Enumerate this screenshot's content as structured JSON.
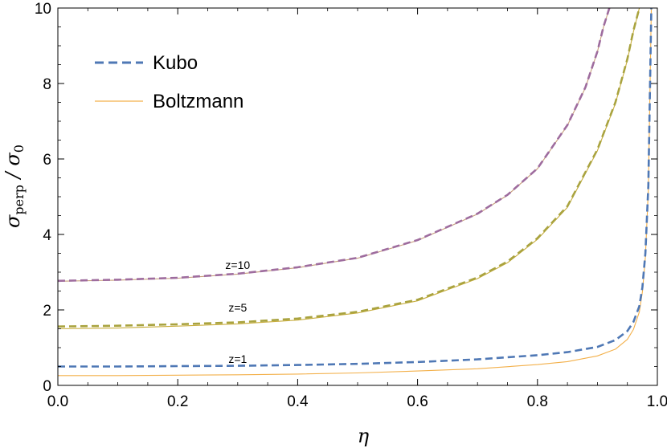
{
  "chart_data": {
    "type": "line",
    "xlabel": {
      "symbol": "η"
    },
    "ylabel": {
      "sigma": "σ",
      "perp_sub": "perp",
      "slash": " / ",
      "zero_sub": "0"
    },
    "xlim": [
      0,
      1.0
    ],
    "ylim": [
      0,
      10
    ],
    "x_ticks": [
      0.0,
      0.2,
      0.4,
      0.6,
      0.8,
      1.0
    ],
    "x_tick_labels": [
      "0.0",
      "0.2",
      "0.4",
      "0.6",
      "0.8",
      "1.0"
    ],
    "y_ticks": [
      0,
      2,
      4,
      6,
      8,
      10
    ],
    "y_tick_labels": [
      "0",
      "2",
      "4",
      "6",
      "8",
      "10"
    ],
    "grid": false,
    "legend": {
      "placement": "top-left",
      "entries": [
        {
          "name": "Kubo",
          "style": "dashed",
          "color": "#4f78b5"
        },
        {
          "name": "Boltzmann",
          "style": "solid",
          "color": "#f3b04a"
        }
      ]
    },
    "annotations": [
      {
        "text": "z=10",
        "x": 0.3,
        "y": 3.08
      },
      {
        "text": "z=5",
        "x": 0.3,
        "y": 1.96
      },
      {
        "text": "z=1",
        "x": 0.3,
        "y": 0.6
      }
    ],
    "series": [
      {
        "z": "10",
        "model": "Kubo",
        "style": "dashed",
        "color": "#9e6c9e",
        "x": [
          0,
          0.1,
          0.2,
          0.3,
          0.4,
          0.5,
          0.6,
          0.7,
          0.75,
          0.8,
          0.85,
          0.88,
          0.9,
          0.91,
          0.92
        ],
        "y": [
          2.77,
          2.8,
          2.85,
          2.96,
          3.13,
          3.38,
          3.85,
          4.55,
          5.05,
          5.75,
          6.9,
          7.9,
          8.85,
          9.5,
          10.0
        ]
      },
      {
        "z": "10",
        "model": "Boltzmann",
        "style": "solid",
        "color": "#c69e7a",
        "x": [
          0,
          0.1,
          0.2,
          0.3,
          0.4,
          0.5,
          0.6,
          0.7,
          0.75,
          0.8,
          0.85,
          0.88,
          0.9,
          0.91,
          0.92
        ],
        "y": [
          2.76,
          2.79,
          2.84,
          2.95,
          3.12,
          3.37,
          3.84,
          4.54,
          5.04,
          5.74,
          6.89,
          7.89,
          8.84,
          9.49,
          10.0
        ]
      },
      {
        "z": "5",
        "model": "Kubo",
        "style": "dashed",
        "color": "#a9a33f",
        "x": [
          0,
          0.1,
          0.2,
          0.3,
          0.4,
          0.5,
          0.6,
          0.7,
          0.75,
          0.8,
          0.85,
          0.9,
          0.93,
          0.95,
          0.96,
          0.97
        ],
        "y": [
          1.56,
          1.58,
          1.62,
          1.67,
          1.77,
          1.95,
          2.27,
          2.86,
          3.28,
          3.9,
          4.75,
          6.25,
          7.5,
          8.65,
          9.4,
          10.0
        ]
      },
      {
        "z": "5",
        "model": "Boltzmann",
        "style": "solid",
        "color": "#c8ad3d",
        "x": [
          0,
          0.1,
          0.2,
          0.3,
          0.4,
          0.5,
          0.6,
          0.7,
          0.75,
          0.8,
          0.85,
          0.9,
          0.93,
          0.95,
          0.96,
          0.97
        ],
        "y": [
          1.5,
          1.52,
          1.57,
          1.63,
          1.73,
          1.92,
          2.24,
          2.83,
          3.25,
          3.87,
          4.72,
          6.22,
          7.47,
          8.62,
          9.37,
          10.0
        ]
      },
      {
        "z": "1",
        "model": "Kubo",
        "style": "dashed",
        "color": "#4f78b5",
        "x": [
          0,
          0.1,
          0.2,
          0.3,
          0.4,
          0.5,
          0.6,
          0.7,
          0.8,
          0.85,
          0.9,
          0.93,
          0.95,
          0.96,
          0.97,
          0.975,
          0.98,
          0.985,
          0.99
        ],
        "y": [
          0.5,
          0.5,
          0.51,
          0.52,
          0.54,
          0.57,
          0.62,
          0.69,
          0.8,
          0.88,
          1.02,
          1.2,
          1.44,
          1.68,
          2.1,
          2.6,
          3.5,
          5.3,
          10.0
        ]
      },
      {
        "z": "1",
        "model": "Boltzmann",
        "style": "solid",
        "color": "#f3b04a",
        "x": [
          0,
          0.1,
          0.2,
          0.3,
          0.4,
          0.5,
          0.6,
          0.7,
          0.8,
          0.85,
          0.9,
          0.93,
          0.95,
          0.96,
          0.97,
          0.975,
          0.98,
          0.985,
          0.99
        ],
        "y": [
          0.26,
          0.26,
          0.27,
          0.28,
          0.3,
          0.33,
          0.38,
          0.44,
          0.55,
          0.63,
          0.78,
          0.96,
          1.22,
          1.48,
          1.95,
          2.48,
          3.4,
          5.2,
          10.0
        ]
      }
    ]
  }
}
